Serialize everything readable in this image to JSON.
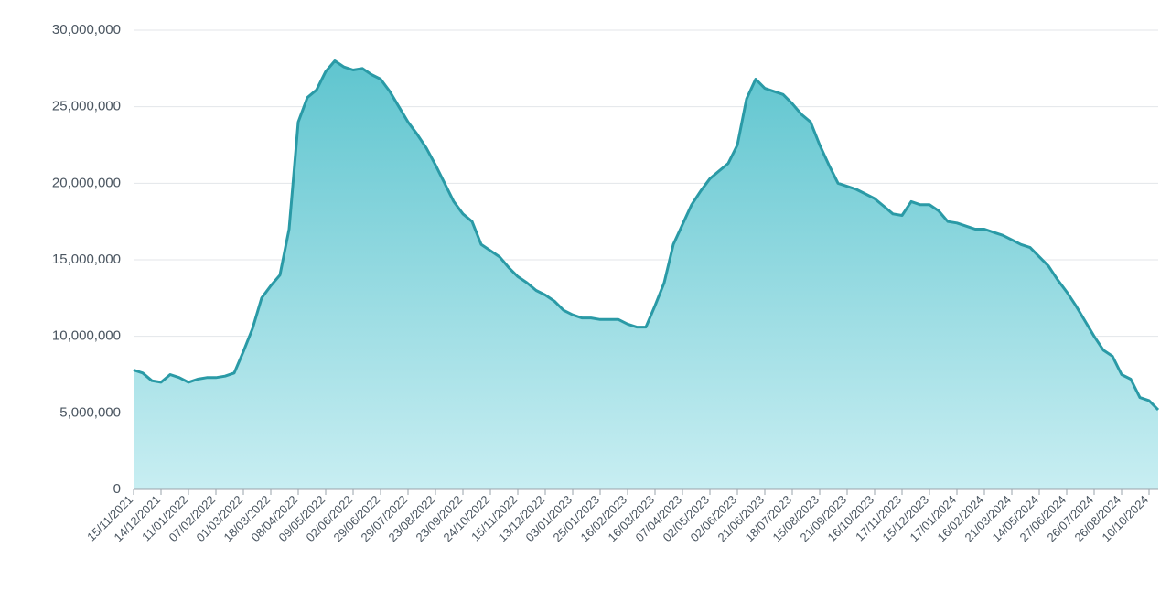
{
  "chart_data": {
    "type": "area",
    "categories": [
      "15/11/2021",
      null,
      null,
      "14/12/2021",
      null,
      null,
      "11/01/2022",
      null,
      null,
      "07/02/2022",
      null,
      null,
      "01/03/2022",
      null,
      null,
      "18/03/2022",
      null,
      null,
      "08/04/2022",
      null,
      null,
      "09/05/2022",
      null,
      null,
      "02/06/2022",
      null,
      null,
      "29/06/2022",
      null,
      null,
      "29/07/2022",
      null,
      null,
      "23/08/2022",
      null,
      null,
      "23/09/2022",
      null,
      null,
      "24/10/2022",
      null,
      null,
      "15/11/2022",
      null,
      null,
      "13/12/2022",
      null,
      null,
      "03/01/2023",
      null,
      null,
      "25/01/2023",
      null,
      null,
      "16/02/2023",
      null,
      null,
      "16/03/2023",
      null,
      null,
      "07/04/2023",
      null,
      null,
      "02/05/2023",
      null,
      null,
      "02/06/2023",
      null,
      null,
      "21/06/2023",
      null,
      null,
      "18/07/2023",
      null,
      null,
      "15/08/2023",
      null,
      null,
      "21/09/2023",
      null,
      null,
      "16/10/2023",
      null,
      null,
      "17/11/2023",
      null,
      null,
      "15/12/2023",
      null,
      null,
      "17/01/2024",
      null,
      null,
      "16/02/2024",
      null,
      null,
      "21/03/2024",
      null,
      null,
      "14/05/2024",
      null,
      null,
      "27/06/2024",
      null,
      null,
      "26/07/2024",
      null,
      null,
      "26/08/2024",
      null,
      null,
      "10/10/2024",
      null
    ],
    "values": [
      7800000,
      7600000,
      7100000,
      7000000,
      7500000,
      7300000,
      7000000,
      7200000,
      7300000,
      7300000,
      7400000,
      7600000,
      9000000,
      10500000,
      12500000,
      13300000,
      14000000,
      17000000,
      24000000,
      25600000,
      26100000,
      27300000,
      28000000,
      27600000,
      27400000,
      27500000,
      27100000,
      26800000,
      26000000,
      25000000,
      24000000,
      23200000,
      22300000,
      21200000,
      20000000,
      18800000,
      18000000,
      17500000,
      16000000,
      15600000,
      15200000,
      14500000,
      13900000,
      13500000,
      13000000,
      12700000,
      12300000,
      11700000,
      11400000,
      11200000,
      11200000,
      11100000,
      11100000,
      11100000,
      10800000,
      10600000,
      10600000,
      12000000,
      13500000,
      16000000,
      17300000,
      18600000,
      19500000,
      20300000,
      20800000,
      21300000,
      22500000,
      25500000,
      26800000,
      26200000,
      26000000,
      25800000,
      25200000,
      24500000,
      24000000,
      22500000,
      21200000,
      20000000,
      19800000,
      19600000,
      19300000,
      19000000,
      18500000,
      18000000,
      17900000,
      18800000,
      18600000,
      18600000,
      18200000,
      17500000,
      17400000,
      17200000,
      17000000,
      17000000,
      16800000,
      16600000,
      16300000,
      16000000,
      15800000,
      15200000,
      14600000,
      13700000,
      12900000,
      12000000,
      11000000,
      10000000,
      9100000,
      8700000,
      7500000,
      7200000,
      6000000,
      5800000,
      5200000
    ],
    "color": "#2a9aa6",
    "ylim": [
      0,
      30000000
    ],
    "yticks": [
      0,
      {
        "value": 5000000,
        "label": "5,000,000"
      },
      {
        "value": 10000000,
        "label": "10,000,000"
      },
      {
        "value": 15000000,
        "label": "15,000,000"
      },
      {
        "value": 20000000,
        "label": "20,000,000"
      },
      {
        "value": 25000000,
        "label": "25,000,000"
      },
      {
        "value": 30000000,
        "label": "30,000,000"
      }
    ],
    "grid": true
  }
}
